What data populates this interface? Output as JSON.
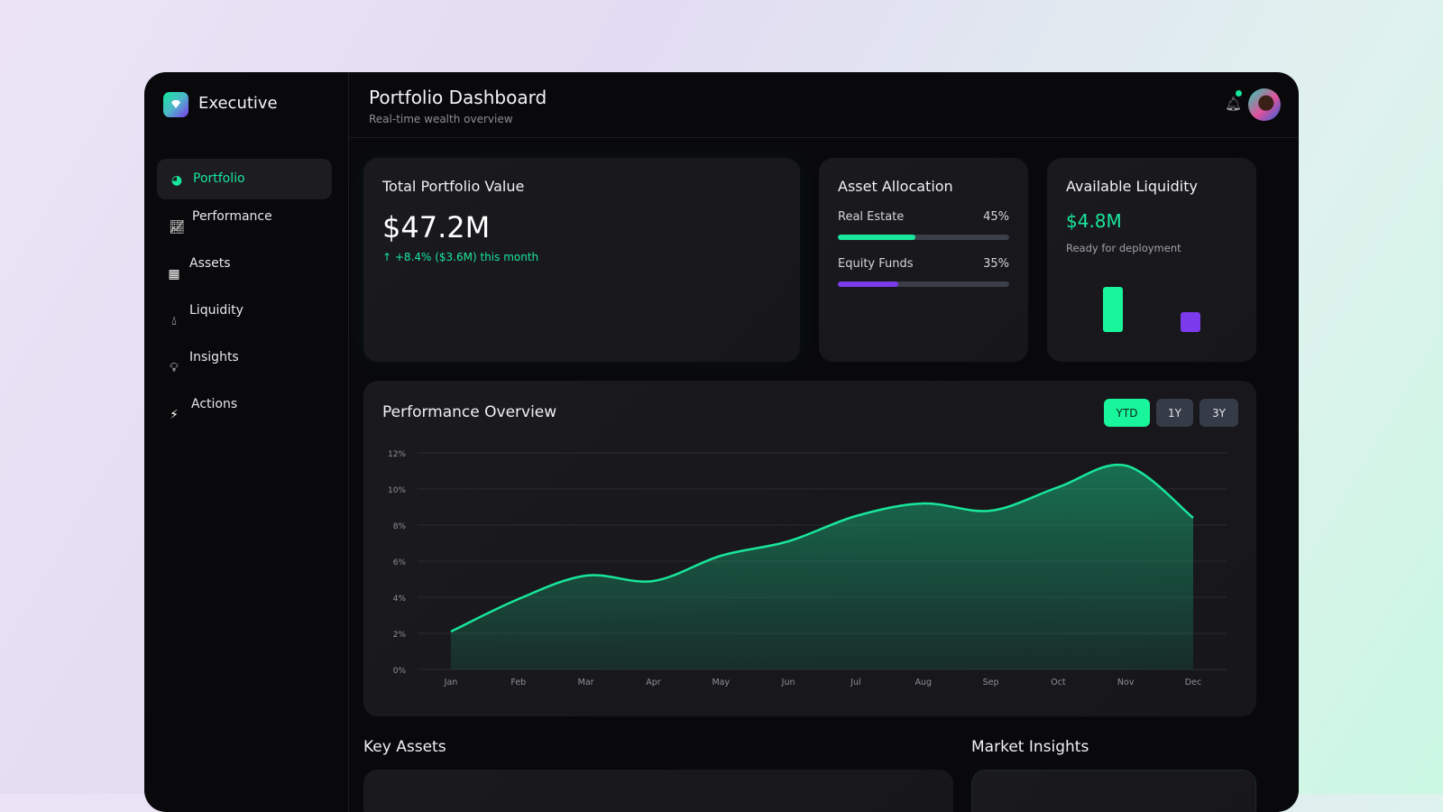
{
  "brand": {
    "name": "Executive"
  },
  "sidebar": {
    "items": [
      {
        "label": "Portfolio",
        "icon": "pie-chart-icon",
        "active": true
      },
      {
        "label": "Performance",
        "icon": "line-chart-icon"
      },
      {
        "label": "Assets",
        "icon": "building-icon"
      },
      {
        "label": "Liquidity",
        "icon": "droplet-icon"
      },
      {
        "label": "Insights",
        "icon": "lightbulb-icon"
      },
      {
        "label": "Actions",
        "icon": "lightning-icon"
      }
    ]
  },
  "header": {
    "title": "Portfolio Dashboard",
    "subtitle": "Real-time wealth overview",
    "notification_dot": true
  },
  "total": {
    "title": "Total Portfolio Value",
    "value": "$47.2M",
    "change": "+8.4% ($3.6M) this month"
  },
  "allocation": {
    "title": "Asset Allocation",
    "items": [
      {
        "label": "Real Estate",
        "pct": "45%",
        "value": 45,
        "color": "#19e69a"
      },
      {
        "label": "Equity Funds",
        "pct": "35%",
        "value": 35,
        "color": "#7c3aed"
      }
    ]
  },
  "liquidity": {
    "title": "Available Liquidity",
    "value": "$4.8M",
    "subtitle": "Ready for deployment",
    "bars": [
      {
        "level": 1.0,
        "color": "#19f59a"
      },
      {
        "level": 0.45,
        "color": "#7c3aed"
      }
    ]
  },
  "performance": {
    "title": "Performance Overview",
    "ranges": [
      "YTD",
      "1Y",
      "3Y"
    ],
    "selected": "YTD"
  },
  "chart_data": {
    "type": "area",
    "categories": [
      "Jan",
      "Feb",
      "Mar",
      "Apr",
      "May",
      "Jun",
      "Jul",
      "Aug",
      "Sep",
      "Oct",
      "Nov",
      "Dec"
    ],
    "values": [
      2.1,
      3.9,
      5.2,
      4.9,
      6.3,
      7.1,
      8.5,
      9.2,
      8.8,
      10.1,
      11.3,
      8.4
    ],
    "yticks": [
      "0%",
      "2%",
      "4%",
      "6%",
      "8%",
      "10%",
      "12%"
    ],
    "ylim": [
      0,
      12
    ],
    "grid": true,
    "color": "#19e69a"
  },
  "sections": {
    "key_assets": "Key Assets",
    "market_insights": "Market Insights"
  }
}
